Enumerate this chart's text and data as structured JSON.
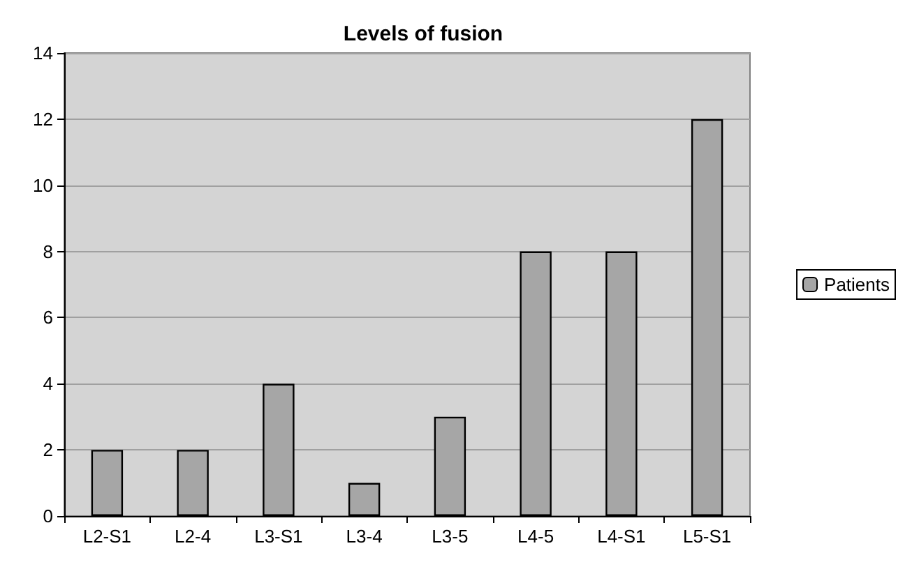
{
  "chart_data": {
    "type": "bar",
    "title": "Levels of fusion",
    "categories": [
      "L2-S1",
      "L2-4",
      "L3-S1",
      "L3-4",
      "L3-5",
      "L4-5",
      "L4-S1",
      "L5-S1"
    ],
    "series": [
      {
        "name": "Patients",
        "color": "#a6a6a6",
        "values": [
          2,
          2,
          4,
          1,
          3,
          8,
          8,
          12
        ]
      }
    ],
    "ylim": [
      0,
      14
    ],
    "yticks": [
      0,
      2,
      4,
      6,
      8,
      10,
      12,
      14
    ],
    "grid": "y",
    "legend": "right"
  }
}
